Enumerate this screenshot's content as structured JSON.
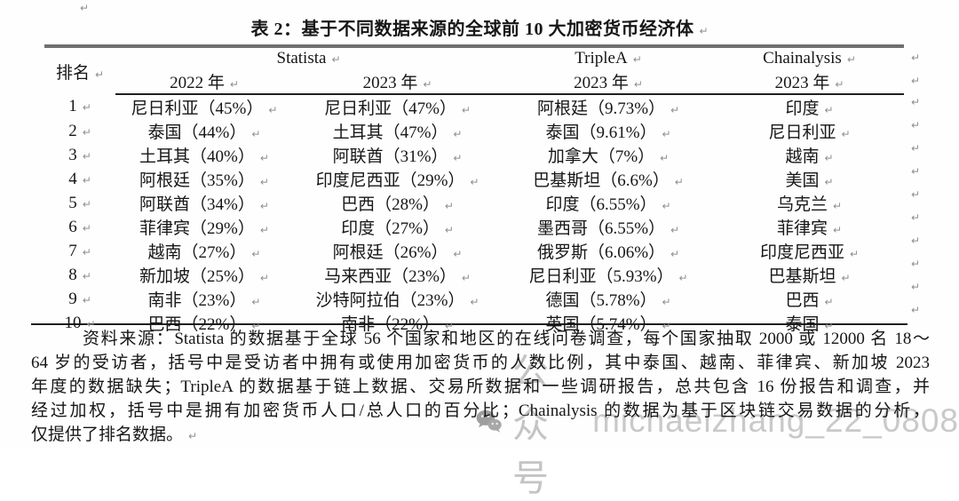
{
  "title": "表 2：基于不同数据来源的全球前 10 大加密货币经济体",
  "decorations": {
    "return_mark": "↵"
  },
  "table": {
    "rank_header": "排名",
    "groups": [
      {
        "label": "Statista"
      },
      {
        "label": "TripleA"
      },
      {
        "label": "Chainalysis"
      }
    ],
    "year_headers": [
      "2022 年",
      "2023 年",
      "2023 年",
      "2023 年"
    ],
    "rows": [
      {
        "rank": "1",
        "cells": [
          "尼日利亚（45%）",
          "尼日利亚（47%）",
          "阿根廷（9.73%）",
          "印度"
        ]
      },
      {
        "rank": "2",
        "cells": [
          "泰国（44%）",
          "土耳其（47%）",
          "泰国（9.61%）",
          "尼日利亚"
        ]
      },
      {
        "rank": "3",
        "cells": [
          "土耳其（40%）",
          "阿联酋（31%）",
          "加拿大（7%）",
          "越南"
        ]
      },
      {
        "rank": "4",
        "cells": [
          "阿根廷（35%）",
          "印度尼西亚（29%）",
          "巴基斯坦（6.6%）",
          "美国"
        ]
      },
      {
        "rank": "5",
        "cells": [
          "阿联酋（34%）",
          "巴西（28%）",
          "印度（6.55%）",
          "乌克兰"
        ]
      },
      {
        "rank": "6",
        "cells": [
          "菲律宾（29%）",
          "印度（27%）",
          "墨西哥（6.55%）",
          "菲律宾"
        ]
      },
      {
        "rank": "7",
        "cells": [
          "越南（27%）",
          "阿根廷（26%）",
          "俄罗斯（6.06%）",
          "印度尼西亚"
        ]
      },
      {
        "rank": "8",
        "cells": [
          "新加坡（25%）",
          "马来西亚（23%）",
          "尼日利亚（5.93%）",
          "巴基斯坦"
        ]
      },
      {
        "rank": "9",
        "cells": [
          "南非（23%）",
          "沙特阿拉伯（23%）",
          "德国（5.78%）",
          "巴西"
        ]
      },
      {
        "rank": "10",
        "cells": [
          "巴西（22%）",
          "南非（22%）",
          "英国（5.74%）",
          "泰国"
        ]
      }
    ]
  },
  "footnote": {
    "lines": [
      "资料来源：Statista 的数据基于全球 56 个国家和地区的在线问卷调查，每个国家抽取 2000 或 12000 名 18～",
      "64 岁的受访者，括号中是受访者中拥有或使用加密货币的人数比例，其中泰国、越南、菲律宾、新加坡 2023",
      "年度的数据缺失；TripleA 的数据基于链上数据、交易所数据和一些调研报告，总共包含 16 份报告和调查，并",
      "经过加权，括号中是拥有加密货币人口/总人口的百分比；Chainalysis 的数据为基于区块链交易数据的分析，",
      "仅提供了排名数据。"
    ]
  },
  "watermark": {
    "label": "公众号",
    "handle": "michaelzhang_22_0808",
    "icon": "wechat-icon",
    "color": "#c6c6c6"
  },
  "colors": {
    "rule_top": "#6f6f6f",
    "rule": "#1f1f1f",
    "text": "#161616",
    "mark": "#8f8f8f",
    "watermark_icon": "#9e9e9e"
  }
}
